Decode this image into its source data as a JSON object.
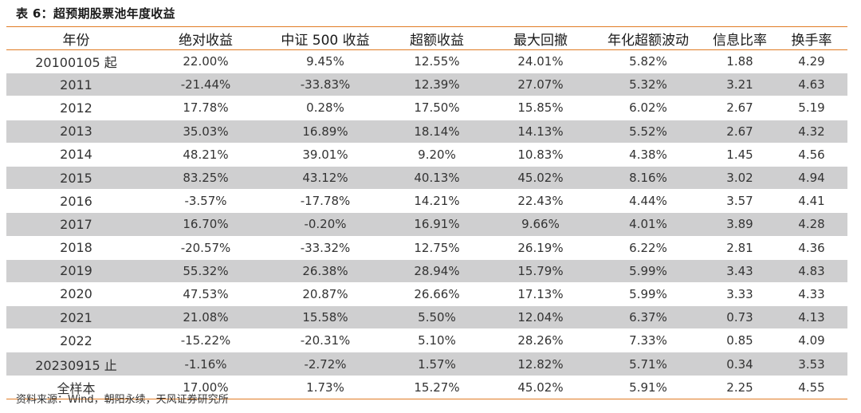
{
  "caption": "表 6：超预期股票池年度收益",
  "source": "资料来源：Wind，朝阳永续，天风证券研究所",
  "colors": {
    "rule": "#e07b24",
    "row_shade": "#cfcfd0"
  },
  "table": {
    "headers": [
      "年份",
      "绝对收益",
      "中证 500 收益",
      "超额收益",
      "最大回撤",
      "年化超额波动",
      "信息比率",
      "换手率"
    ],
    "rows": [
      [
        "20100105 起",
        "22.00%",
        "9.45%",
        "12.55%",
        "24.01%",
        "5.82%",
        "1.88",
        "4.29"
      ],
      [
        "2011",
        "-21.44%",
        "-33.83%",
        "12.39%",
        "27.07%",
        "5.32%",
        "3.21",
        "4.63"
      ],
      [
        "2012",
        "17.78%",
        "0.28%",
        "17.50%",
        "15.85%",
        "6.02%",
        "2.67",
        "5.19"
      ],
      [
        "2013",
        "35.03%",
        "16.89%",
        "18.14%",
        "14.13%",
        "5.52%",
        "2.67",
        "4.32"
      ],
      [
        "2014",
        "48.21%",
        "39.01%",
        "9.20%",
        "10.83%",
        "4.38%",
        "1.45",
        "4.56"
      ],
      [
        "2015",
        "83.25%",
        "43.12%",
        "40.13%",
        "45.02%",
        "8.16%",
        "3.02",
        "4.94"
      ],
      [
        "2016",
        "-3.57%",
        "-17.78%",
        "14.21%",
        "22.43%",
        "4.44%",
        "3.57",
        "4.41"
      ],
      [
        "2017",
        "16.70%",
        "-0.20%",
        "16.91%",
        "9.66%",
        "4.01%",
        "3.89",
        "4.28"
      ],
      [
        "2018",
        "-20.57%",
        "-33.32%",
        "12.75%",
        "26.19%",
        "6.22%",
        "2.81",
        "4.36"
      ],
      [
        "2019",
        "55.32%",
        "26.38%",
        "28.94%",
        "15.79%",
        "5.99%",
        "3.43",
        "4.83"
      ],
      [
        "2020",
        "47.53%",
        "20.87%",
        "26.66%",
        "17.13%",
        "5.99%",
        "3.33",
        "4.33"
      ],
      [
        "2021",
        "21.08%",
        "15.58%",
        "5.50%",
        "12.04%",
        "6.37%",
        "0.73",
        "4.13"
      ],
      [
        "2022",
        "-15.22%",
        "-20.31%",
        "5.10%",
        "28.26%",
        "7.33%",
        "0.85",
        "4.09"
      ],
      [
        "20230915 止",
        "-1.16%",
        "-2.72%",
        "1.57%",
        "12.82%",
        "5.71%",
        "0.34",
        "3.53"
      ],
      [
        "全样本",
        "17.00%",
        "1.73%",
        "15.27%",
        "45.02%",
        "5.91%",
        "2.25",
        "4.55"
      ]
    ]
  }
}
